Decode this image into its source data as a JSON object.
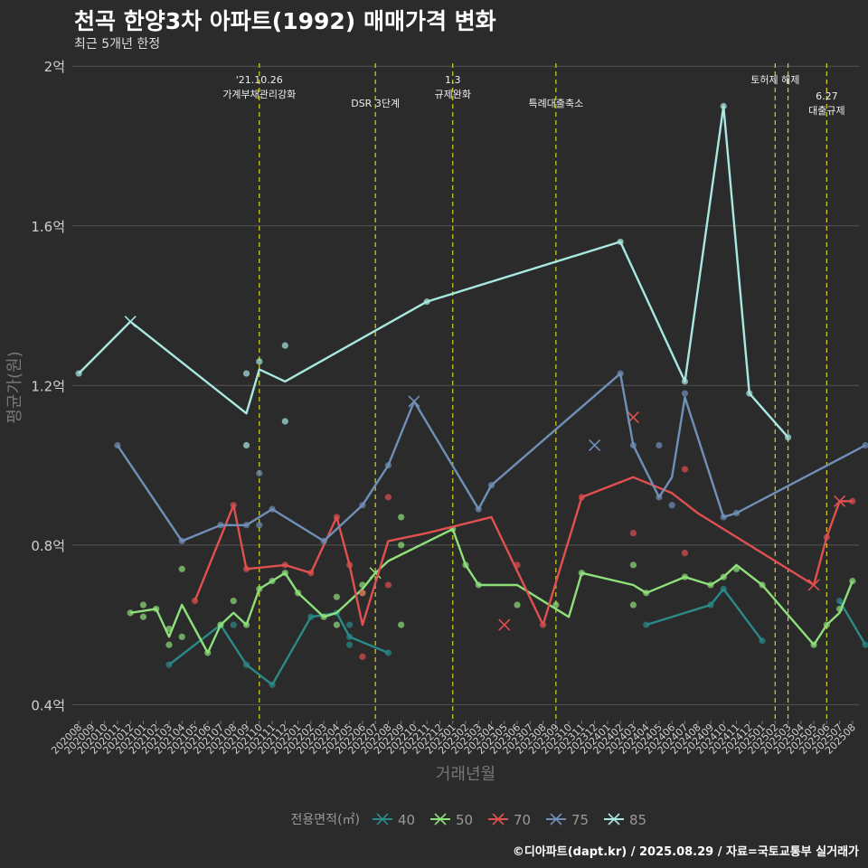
{
  "title": "천곡 한양3차 아파트(1992) 매매가격 변화",
  "subtitle": "최근 5개년 한정",
  "footer": "©디아파트(dapt.kr) / 2025.08.29 / 자료=국토교통부 실거래가",
  "chart_data": {
    "type": "line",
    "xlabel": "거래년월",
    "ylabel": "평균가(원)",
    "ylim": [
      0.36,
      2.03
    ],
    "y_ticks": [
      {
        "value": 0.4,
        "label": "0.4억"
      },
      {
        "value": 0.8,
        "label": "0.8억"
      },
      {
        "value": 1.2,
        "label": "1.2억"
      },
      {
        "value": 1.6,
        "label": "1.6억"
      },
      {
        "value": 2.0,
        "label": "2억"
      }
    ],
    "categories": [
      "202008",
      "202009",
      "202010",
      "202011",
      "202012",
      "202101",
      "202102",
      "202103",
      "202104",
      "202105",
      "202106",
      "202107",
      "202108",
      "202109",
      "202110",
      "202111",
      "202112",
      "202201",
      "202202",
      "202203",
      "202204",
      "202205",
      "202206",
      "202207",
      "202208",
      "202209",
      "202210",
      "202211",
      "202212",
      "202301",
      "202302",
      "202303",
      "202304",
      "202305",
      "202306",
      "202307",
      "202308",
      "202309",
      "202310",
      "202311",
      "202312",
      "202401",
      "202402",
      "202403",
      "202404",
      "202405",
      "202406",
      "202407",
      "202408",
      "202409",
      "202410",
      "202411",
      "202412",
      "202501",
      "202502",
      "202503",
      "202504",
      "202505",
      "202506",
      "202507",
      "202508"
    ],
    "legend_title": "전용면적(㎡)",
    "legend_position": "bottom",
    "series": [
      {
        "name": "40",
        "color": "#2a8a8a",
        "line": [
          [
            7,
            0.5
          ],
          [
            11,
            0.6
          ],
          [
            13,
            0.5
          ],
          [
            15,
            0.45
          ],
          [
            18,
            0.62
          ],
          [
            20,
            0.63
          ],
          [
            21,
            0.57
          ],
          [
            24,
            0.53
          ]
        ],
        "points": [
          [
            7,
            0.5
          ],
          [
            11,
            0.6
          ],
          [
            12,
            0.6
          ],
          [
            13,
            0.5
          ],
          [
            15,
            0.45
          ],
          [
            18,
            0.62
          ],
          [
            20,
            0.63
          ],
          [
            21,
            0.57
          ],
          [
            21,
            0.6
          ],
          [
            21,
            0.55
          ],
          [
            24,
            0.53
          ],
          [
            44,
            0.6
          ],
          [
            49,
            0.65
          ],
          [
            50,
            0.69
          ],
          [
            53,
            0.56
          ],
          [
            59,
            0.66
          ],
          [
            61,
            0.55
          ]
        ],
        "segments": [
          [
            [
              44,
              0.6
            ],
            [
              49,
              0.65
            ],
            [
              50,
              0.69
            ],
            [
              53,
              0.56
            ]
          ],
          [
            [
              59,
              0.66
            ],
            [
              61,
              0.55
            ]
          ]
        ],
        "crosses": []
      },
      {
        "name": "50",
        "color": "#8ee07a",
        "line": [
          [
            4,
            0.63
          ],
          [
            6,
            0.64
          ],
          [
            7,
            0.57
          ],
          [
            8,
            0.65
          ],
          [
            10,
            0.53
          ],
          [
            11,
            0.6
          ],
          [
            12,
            0.63
          ],
          [
            13,
            0.6
          ],
          [
            14,
            0.69
          ],
          [
            15,
            0.71
          ],
          [
            16,
            0.73
          ],
          [
            17,
            0.68
          ],
          [
            19,
            0.62
          ],
          [
            20,
            0.63
          ],
          [
            22,
            0.69
          ],
          [
            23,
            0.73
          ],
          [
            24,
            0.76
          ],
          [
            29,
            0.84
          ],
          [
            30,
            0.75
          ],
          [
            31,
            0.7
          ],
          [
            34,
            0.7
          ],
          [
            38,
            0.62
          ],
          [
            39,
            0.73
          ],
          [
            43,
            0.7
          ],
          [
            44,
            0.68
          ],
          [
            47,
            0.72
          ],
          [
            49,
            0.7
          ],
          [
            50,
            0.72
          ],
          [
            51,
            0.75
          ],
          [
            53,
            0.7
          ],
          [
            57,
            0.55
          ],
          [
            58,
            0.6
          ],
          [
            59,
            0.63
          ],
          [
            60,
            0.71
          ]
        ],
        "points": [
          [
            4,
            0.63
          ],
          [
            5,
            0.62
          ],
          [
            5,
            0.65
          ],
          [
            6,
            0.64
          ],
          [
            7,
            0.55
          ],
          [
            7,
            0.59
          ],
          [
            8,
            0.74
          ],
          [
            8,
            0.57
          ],
          [
            10,
            0.53
          ],
          [
            11,
            0.6
          ],
          [
            12,
            0.66
          ],
          [
            13,
            0.6
          ],
          [
            14,
            0.69
          ],
          [
            15,
            0.71
          ],
          [
            16,
            0.73
          ],
          [
            17,
            0.68
          ],
          [
            19,
            0.62
          ],
          [
            20,
            0.67
          ],
          [
            20,
            0.6
          ],
          [
            22,
            0.68
          ],
          [
            22,
            0.7
          ],
          [
            25,
            0.87
          ],
          [
            25,
            0.8
          ],
          [
            25,
            0.6
          ],
          [
            29,
            0.84
          ],
          [
            30,
            0.75
          ],
          [
            31,
            0.7
          ],
          [
            34,
            0.65
          ],
          [
            37,
            0.65
          ],
          [
            39,
            0.73
          ],
          [
            43,
            0.75
          ],
          [
            43,
            0.65
          ],
          [
            44,
            0.68
          ],
          [
            47,
            0.72
          ],
          [
            49,
            0.7
          ],
          [
            50,
            0.72
          ],
          [
            51,
            0.74
          ],
          [
            53,
            0.7
          ],
          [
            57,
            0.55
          ],
          [
            58,
            0.6
          ],
          [
            59,
            0.64
          ],
          [
            60,
            0.71
          ]
        ],
        "crosses": [
          [
            23,
            0.73
          ]
        ]
      },
      {
        "name": "70",
        "color": "#e05050",
        "line": [
          [
            9,
            0.66
          ],
          [
            12,
            0.9
          ],
          [
            13,
            0.74
          ],
          [
            16,
            0.75
          ],
          [
            18,
            0.73
          ],
          [
            20,
            0.87
          ],
          [
            21,
            0.75
          ],
          [
            22,
            0.6
          ],
          [
            24,
            0.81
          ],
          [
            27,
            0.83
          ],
          [
            32,
            0.87
          ],
          [
            36,
            0.6
          ],
          [
            39,
            0.92
          ],
          [
            43,
            0.97
          ],
          [
            46,
            0.93
          ],
          [
            48,
            0.88
          ],
          [
            57,
            0.7
          ],
          [
            58,
            0.82
          ],
          [
            59,
            0.91
          ],
          [
            60,
            0.91
          ]
        ],
        "points": [
          [
            9,
            0.66
          ],
          [
            12,
            0.9
          ],
          [
            13,
            0.74
          ],
          [
            16,
            0.75
          ],
          [
            18,
            0.73
          ],
          [
            20,
            0.87
          ],
          [
            21,
            0.75
          ],
          [
            22,
            0.68
          ],
          [
            22,
            0.52
          ],
          [
            24,
            0.92
          ],
          [
            24,
            0.7
          ],
          [
            34,
            0.75
          ],
          [
            36,
            0.6
          ],
          [
            39,
            0.92
          ],
          [
            43,
            0.83
          ],
          [
            47,
            0.78
          ],
          [
            47,
            0.99
          ],
          [
            58,
            0.82
          ],
          [
            60,
            0.91
          ]
        ],
        "crosses": [
          [
            33,
            0.6
          ],
          [
            43,
            1.12
          ],
          [
            57,
            0.7
          ],
          [
            59,
            0.91
          ]
        ]
      },
      {
        "name": "75",
        "color": "#7090b8",
        "line": [
          [
            3,
            1.05
          ],
          [
            8,
            0.81
          ],
          [
            11,
            0.85
          ],
          [
            13,
            0.85
          ],
          [
            15,
            0.89
          ],
          [
            19,
            0.81
          ],
          [
            22,
            0.9
          ],
          [
            24,
            1.0
          ],
          [
            26,
            1.16
          ],
          [
            31,
            0.89
          ],
          [
            32,
            0.95
          ],
          [
            42,
            1.23
          ],
          [
            43,
            1.05
          ],
          [
            45,
            0.92
          ],
          [
            46,
            0.97
          ],
          [
            47,
            1.17
          ],
          [
            50,
            0.87
          ],
          [
            51,
            0.88
          ],
          [
            61,
            1.05
          ]
        ],
        "points": [
          [
            3,
            1.05
          ],
          [
            8,
            0.81
          ],
          [
            11,
            0.85
          ],
          [
            13,
            0.85
          ],
          [
            14,
            0.98
          ],
          [
            14,
            0.85
          ],
          [
            15,
            0.89
          ],
          [
            19,
            0.81
          ],
          [
            22,
            0.9
          ],
          [
            24,
            1.0
          ],
          [
            31,
            0.89
          ],
          [
            32,
            0.95
          ],
          [
            42,
            1.23
          ],
          [
            43,
            1.05
          ],
          [
            45,
            0.92
          ],
          [
            45,
            1.05
          ],
          [
            46,
            0.9
          ],
          [
            47,
            1.18
          ],
          [
            50,
            0.87
          ],
          [
            51,
            0.88
          ],
          [
            61,
            1.05
          ]
        ],
        "crosses": [
          [
            26,
            1.16
          ],
          [
            40,
            1.05
          ]
        ]
      },
      {
        "name": "85",
        "color": "#a8e8e0",
        "line": [
          [
            0,
            1.23
          ],
          [
            4,
            1.36
          ],
          [
            13,
            1.13
          ],
          [
            14,
            1.24
          ],
          [
            16,
            1.21
          ],
          [
            27,
            1.41
          ],
          [
            42,
            1.56
          ],
          [
            47,
            1.21
          ],
          [
            50,
            1.9
          ],
          [
            52,
            1.18
          ],
          [
            55,
            1.07
          ]
        ],
        "points": [
          [
            0,
            1.23
          ],
          [
            13,
            1.05
          ],
          [
            13,
            1.23
          ],
          [
            14,
            1.26
          ],
          [
            16,
            1.3
          ],
          [
            16,
            1.11
          ],
          [
            27,
            1.41
          ],
          [
            42,
            1.56
          ],
          [
            47,
            1.21
          ],
          [
            50,
            1.9
          ],
          [
            52,
            1.18
          ],
          [
            55,
            1.07
          ]
        ],
        "crosses": [
          [
            4,
            1.36
          ]
        ]
      }
    ],
    "annotations": [
      {
        "x": 14,
        "text": [
          "'21.10.26",
          "가계부채관리강화"
        ],
        "level": 0
      },
      {
        "x": 23,
        "text": [
          "DSR 3단계"
        ],
        "level": 1
      },
      {
        "x": 29,
        "text": [
          "1.3",
          "규제완화"
        ],
        "level": 0
      },
      {
        "x": 37,
        "text": [
          "특례대출축소"
        ],
        "level": 1
      },
      {
        "x": 54,
        "text": [
          "토허제 해제"
        ],
        "level": 0
      },
      {
        "x": 55,
        "text": [],
        "level": 0
      },
      {
        "x": 58,
        "text": [
          "6.27",
          "대출규제"
        ],
        "level": 2
      }
    ]
  },
  "colors": {
    "background": "#2b2b2b",
    "grid": "#555555",
    "vline": "#d4d422"
  }
}
